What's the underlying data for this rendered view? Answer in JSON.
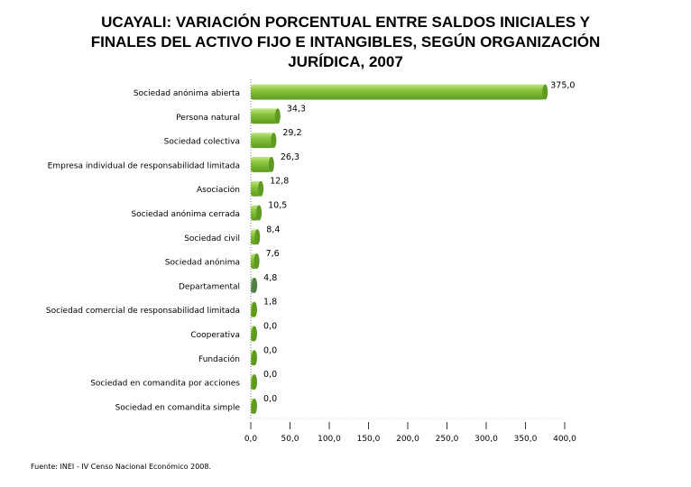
{
  "chart_data": {
    "type": "bar",
    "orientation": "horizontal",
    "title_lines": [
      "UCAYALI: VARIACIÓN PORCENTUAL ENTRE SALDOS INICIALES Y",
      "FINALES DEL ACTIVO FIJO E INTANGIBLES, SEGÚN ORGANIZACIÓN",
      "JURÍDICA, 2007"
    ],
    "categories": [
      "Sociedad anónima abierta",
      "Persona natural",
      "Sociedad colectiva",
      "Empresa individual de responsabilidad limitada",
      "Asociación",
      "Sociedad anónima cerrada",
      "Sociedad civil",
      "Sociedad anónima",
      "Departamental",
      "Sociedad comercial de responsabilidad limitada",
      "Cooperativa",
      "Fundación",
      "Sociedad en comandita por acciones",
      "Sociedad en comandita simple"
    ],
    "values": [
      375.0,
      34.3,
      29.2,
      26.3,
      12.8,
      10.5,
      8.4,
      7.6,
      4.8,
      1.8,
      0.0,
      0.0,
      0.0,
      0.0
    ],
    "data_labels": [
      "375,0",
      "34,3",
      "29,2",
      "26,3",
      "12,8",
      "10,5",
      "8,4",
      "7,6",
      "4,8",
      "1,8",
      "0,0",
      "0,0",
      "0,0",
      "0,0"
    ],
    "highlighted_category": "Departamental",
    "xlim": [
      0,
      400
    ],
    "xticks": [
      0,
      50,
      100,
      150,
      200,
      250,
      300,
      350,
      400
    ],
    "xtick_labels": [
      "0,0",
      "50,0",
      "100,0",
      "150,0",
      "200,0",
      "250,0",
      "300,0",
      "350,0",
      "400,0"
    ],
    "grid": false,
    "legend": "none",
    "colors": {
      "bar": "#8cc63f",
      "bar_dark": "#5e9a1f",
      "bar_light": "#c4e68a",
      "highlight": "#7fae72",
      "highlight_dark": "#4f7f45",
      "axis": "#808080"
    }
  },
  "footnote": "Fuente: INEI - IV Censo Nacional Económico 2008."
}
